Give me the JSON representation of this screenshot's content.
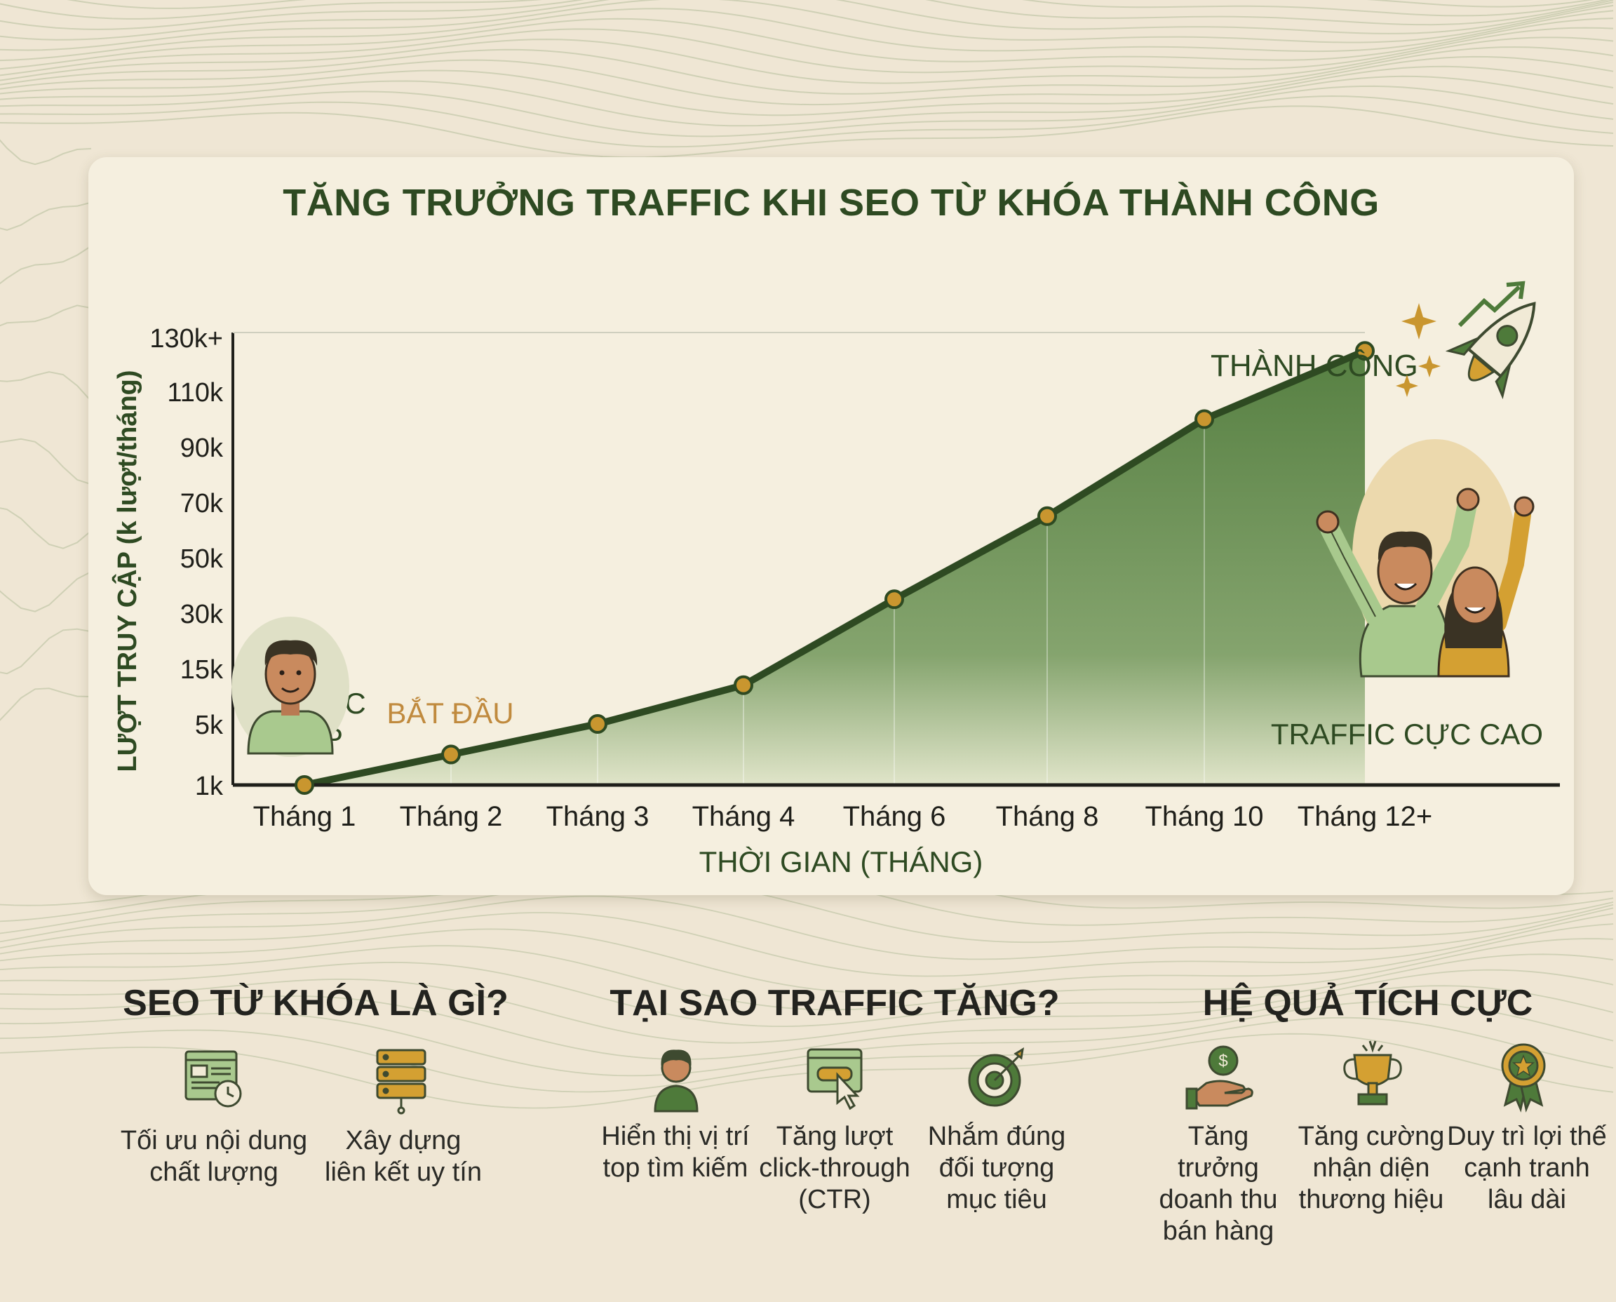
{
  "colors": {
    "background": "#efe6d4",
    "card": "#f5efdf",
    "dark_green": "#2e4a22",
    "area_green": "#4e7a3a",
    "point_gold": "#c9962f",
    "label_orange": "#c08a3e"
  },
  "chart_data": {
    "type": "area",
    "title": "TĂNG TRƯỞNG TRAFFIC KHI SEO TỪ KHÓA THÀNH CÔNG",
    "xlabel": "THỜI GIAN (THÁNG)",
    "ylabel": "LƯỢT TRUY CẬP (k lượt/tháng)",
    "categories": [
      "Tháng 1",
      "Tháng 2",
      "Tháng 3",
      "Tháng 4",
      "Tháng 6",
      "Tháng 8",
      "Tháng 10",
      "Tháng 12+"
    ],
    "y_ticks": [
      "1k",
      "5k",
      "15k",
      "30k",
      "50k",
      "70k",
      "90k",
      "110k",
      "130k+"
    ],
    "y_scale": "nonlinear (tick labels evenly spaced)",
    "values": [
      1,
      3,
      5,
      12,
      35,
      65,
      100,
      125
    ],
    "annotations": {
      "low": "TRAFFIC\nTHẤP",
      "start": "BẮT ĐẦU",
      "success": "THÀNH CÔNG",
      "high": "TRAFFIC CỰC CAO"
    },
    "grid": false,
    "legend": "none"
  },
  "sections": [
    {
      "title": "SEO TỪ KHÓA LÀ GÌ?",
      "items": [
        {
          "icon": "web-content-clock-icon",
          "text": "Tối ưu nội dung\nchất lượng"
        },
        {
          "icon": "server-link-icon",
          "text": "Xây dựng\nliên kết uy tín"
        }
      ]
    },
    {
      "title": "TẠI SAO TRAFFIC TĂNG?",
      "items": [
        {
          "icon": "person-icon",
          "text": "Hiển thị vị trí\ntop tìm kiếm"
        },
        {
          "icon": "cursor-click-icon",
          "text": "Tăng lượt\nclick-through\n(CTR)"
        },
        {
          "icon": "target-icon",
          "text": "Nhắm đúng\nđối tượng\nmục tiêu"
        }
      ]
    },
    {
      "title": "HỆ QUẢ TÍCH CỰC",
      "items": [
        {
          "icon": "money-hand-icon",
          "text": "Tăng trưởng\ndoanh thu\nbán hàng"
        },
        {
          "icon": "trophy-icon",
          "text": "Tăng cường\nnhận diện\nthương hiệu"
        },
        {
          "icon": "award-badge-icon",
          "text": "Duy trì lợi thế\ncạnh tranh\nlâu dài"
        }
      ]
    }
  ]
}
